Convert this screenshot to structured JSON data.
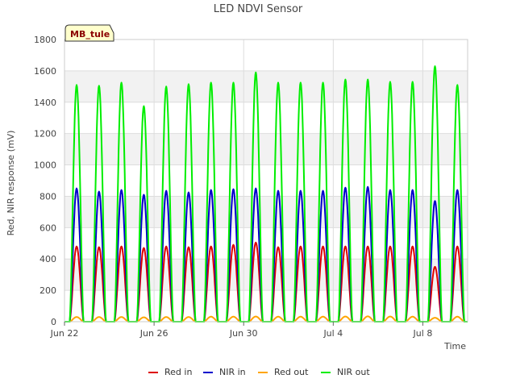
{
  "chart_data": {
    "type": "line",
    "title": "LED NDVI Sensor",
    "xlabel": "Time",
    "ylabel": "Red, NIR response (mV)",
    "site_label": "MB_tule",
    "xlim": [
      "2024-06-22",
      "2024-07-10"
    ],
    "ylim": [
      0,
      1800
    ],
    "yticks": [
      0,
      200,
      400,
      600,
      800,
      1000,
      1200,
      1400,
      1600,
      1800
    ],
    "xticks": [
      {
        "date": "2024-06-22",
        "label": "Jun 22"
      },
      {
        "date": "2024-06-26",
        "label": "Jun 26"
      },
      {
        "date": "2024-06-30",
        "label": "Jun 30"
      },
      {
        "date": "2024-07-04",
        "label": "Jul 4"
      },
      {
        "date": "2024-07-08",
        "label": "Jul 8"
      }
    ],
    "grid": true,
    "legend_position": "bottom",
    "days": [
      "2024-06-22",
      "2024-06-23",
      "2024-06-24",
      "2024-06-25",
      "2024-06-26",
      "2024-06-27",
      "2024-06-28",
      "2024-06-29",
      "2024-06-30",
      "2024-07-01",
      "2024-07-02",
      "2024-07-03",
      "2024-07-04",
      "2024-07-05",
      "2024-07-06",
      "2024-07-07",
      "2024-07-08",
      "2024-07-09"
    ],
    "series": [
      {
        "name": "Red in",
        "color": "#dd0000",
        "daily_peak": [
          480,
          475,
          480,
          470,
          480,
          475,
          480,
          490,
          505,
          475,
          480,
          480,
          480,
          480,
          480,
          480,
          350,
          480
        ]
      },
      {
        "name": "NIR in",
        "color": "#0000cc",
        "daily_peak": [
          850,
          830,
          840,
          810,
          835,
          825,
          840,
          845,
          850,
          835,
          835,
          835,
          855,
          860,
          840,
          840,
          770,
          840
        ]
      },
      {
        "name": "Red out",
        "color": "#ffa500",
        "daily_peak": [
          30,
          30,
          30,
          28,
          30,
          30,
          32,
          32,
          33,
          32,
          32,
          32,
          33,
          34,
          33,
          32,
          25,
          32
        ]
      },
      {
        "name": "NIR out",
        "color": "#00ee00",
        "daily_peak": [
          1510,
          1505,
          1525,
          1375,
          1500,
          1515,
          1525,
          1525,
          1590,
          1525,
          1525,
          1525,
          1545,
          1545,
          1530,
          1530,
          1630,
          1510
        ]
      }
    ]
  }
}
